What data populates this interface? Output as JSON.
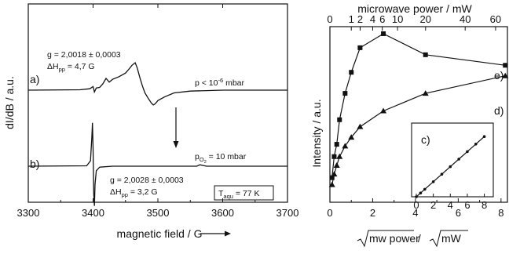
{
  "chart_data": [
    {
      "type": "line",
      "xlabel": "magnetic field / G",
      "ylabel": "dI/dB / a.u.",
      "xlim": [
        3300,
        3700
      ],
      "x_ticks": [
        "3300",
        "3400",
        "3500",
        "3600",
        "3700"
      ],
      "series": [
        {
          "label": "a)",
          "x": [
            3300,
            3380,
            3395,
            3400,
            3402,
            3405,
            3410,
            3415,
            3420,
            3425,
            3430,
            3440,
            3450,
            3455,
            3460,
            3465,
            3468,
            3472,
            3476,
            3480,
            3485,
            3490,
            3493,
            3496,
            3500,
            3510,
            3525,
            3550,
            3600,
            3700
          ],
          "y": [
            0.0,
            0.02,
            0.08,
            0.2,
            -0.1,
            0.12,
            0.15,
            0.35,
            0.65,
            0.45,
            0.6,
            0.75,
            0.95,
            1.15,
            1.38,
            1.52,
            1.25,
            0.72,
            0.25,
            -0.15,
            -0.45,
            -0.72,
            -0.82,
            -0.75,
            -0.58,
            -0.38,
            -0.15,
            -0.05,
            0.0,
            0.0
          ]
        },
        {
          "label": "b)",
          "x": [
            3300,
            3390,
            3396,
            3398,
            3399,
            3400,
            3401,
            3402,
            3403,
            3405,
            3410,
            3430,
            3560,
            3565,
            3570,
            3575,
            3700
          ],
          "y": [
            0.0,
            0.02,
            0.3,
            1.5,
            2.4,
            1.0,
            -1.5,
            -2.2,
            -1.0,
            -0.25,
            -0.05,
            0.0,
            0.0,
            0.08,
            0.04,
            0.0,
            0.0
          ]
        }
      ],
      "annotations": {
        "a_g": "g = 2,0018 ± 0,0003",
        "a_dh_prefix": "ΔH",
        "a_dh_sub": "pp",
        "a_dh_value": " = 4,7 G",
        "a_pressure": "p < 10",
        "a_pressure_exp": "-6",
        "a_pressure_unit": " mbar",
        "b_pressure_p": "p",
        "b_pressure_sub": "O",
        "b_pressure_sub2": "2",
        "b_pressure_value": " = 10 mbar",
        "b_g": "g = 2,0028 ± 0,0003",
        "b_dh_prefix": "ΔH",
        "b_dh_sub": "pp",
        "b_dh_value": " = 3,2 G",
        "temp_t": "T",
        "temp_sub": "aqu",
        "temp_value": " = 77 K"
      }
    },
    {
      "type": "line",
      "xlabel_sqrt1": "mw power",
      "xlabel_sep": " / ",
      "xlabel_sqrt2": "mW",
      "x2label": "microwave power / mW",
      "ylabel": "Intensity / a.u.",
      "xlim": [
        0,
        8.3
      ],
      "x_ticks": [
        "0",
        "2",
        "4",
        "6",
        "8"
      ],
      "x2_ticks": [
        {
          "label": "0",
          "value": 0
        },
        {
          "label": "1",
          "value": 1
        },
        {
          "label": "2",
          "value": 2
        },
        {
          "label": "4",
          "value": 4
        },
        {
          "label": "6",
          "value": 6
        },
        {
          "label": "10",
          "value": 10
        },
        {
          "label": "20",
          "value": 20
        },
        {
          "label": "40",
          "value": 40
        },
        {
          "label": "60",
          "value": 60
        }
      ],
      "ylim": [
        0,
        1.0
      ],
      "series": [
        {
          "label": "e)",
          "marker": "square",
          "x": [
            0.1,
            0.2,
            0.32,
            0.45,
            0.71,
            1.0,
            1.41,
            2.5,
            4.47,
            8.2
          ],
          "y": [
            0.14,
            0.26,
            0.33,
            0.47,
            0.62,
            0.74,
            0.88,
            0.96,
            0.84,
            0.78
          ]
        },
        {
          "label": "d)",
          "marker": "triangle",
          "x": [
            0.1,
            0.2,
            0.32,
            0.45,
            0.71,
            1.0,
            1.41,
            2.5,
            4.47,
            8.2
          ],
          "y": [
            0.1,
            0.16,
            0.21,
            0.26,
            0.32,
            0.37,
            0.43,
            0.52,
            0.62,
            0.72
          ]
        }
      ],
      "inset": {
        "label": "c)",
        "x_ticks": [
          "0",
          "2",
          "4",
          "6",
          "8"
        ],
        "xlim": [
          0,
          8.5
        ],
        "ylim": [
          0,
          1.0
        ],
        "x": [
          0,
          0.5,
          1,
          2,
          3,
          4,
          5,
          6,
          7,
          8
        ],
        "y": [
          0,
          0.06,
          0.12,
          0.24,
          0.36,
          0.48,
          0.6,
          0.72,
          0.84,
          0.96
        ]
      }
    }
  ]
}
